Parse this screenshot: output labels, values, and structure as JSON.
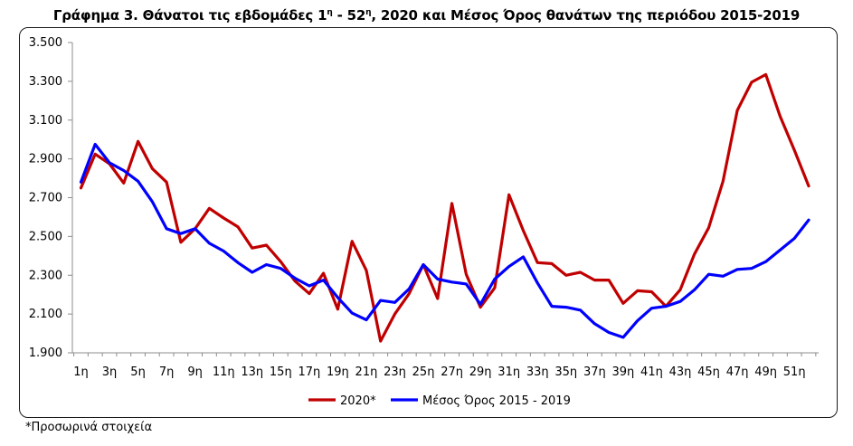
{
  "title": {
    "pre": "Γράφημα 3. Θάνατοι τις εβδομάδες 1",
    "sup1": "η",
    "mid": " - 52",
    "sup2": "η",
    "post": ", 2020 και Μέσος Όρος θανάτων της περιόδου 2015-2019"
  },
  "footnote": "*Προσωρινά στοιχεία",
  "chart_data": {
    "type": "line",
    "title": "Γράφημα 3. Θάνατοι τις εβδομάδες 1η - 52η, 2020 και Μέσος Όρος θανάτων της περιόδου 2015-2019",
    "xlabel": "",
    "ylabel": "",
    "ylim": [
      1900,
      3500
    ],
    "yticks": [
      1900,
      2100,
      2300,
      2500,
      2700,
      2900,
      3100,
      3300,
      3500
    ],
    "ytick_labels": [
      "1.900",
      "2.100",
      "2.300",
      "2.500",
      "2.700",
      "2.900",
      "3.100",
      "3.300",
      "3.500"
    ],
    "xtick_labels": [
      "1η",
      "3η",
      "5η",
      "7η",
      "9η",
      "11η",
      "13η",
      "15η",
      "17η",
      "19η",
      "21η",
      "23η",
      "25η",
      "27η",
      "29η",
      "31η",
      "33η",
      "35η",
      "37η",
      "39η",
      "41η",
      "43η",
      "45η",
      "47η",
      "49η",
      "51η"
    ],
    "grid": false,
    "legend_position": "bottom",
    "x": [
      1,
      2,
      3,
      4,
      5,
      6,
      7,
      8,
      9,
      10,
      11,
      12,
      13,
      14,
      15,
      16,
      17,
      18,
      19,
      20,
      21,
      22,
      23,
      24,
      25,
      26,
      27,
      28,
      29,
      30,
      31,
      32,
      33,
      34,
      35,
      36,
      37,
      38,
      39,
      40,
      41,
      42,
      43,
      44,
      45,
      46,
      47,
      48,
      49,
      50,
      51,
      52
    ],
    "series": [
      {
        "name": "2020*",
        "color": "#c00000",
        "values": [
          2750,
          2925,
          2875,
          2775,
          2990,
          2850,
          2780,
          2470,
          2540,
          2645,
          2595,
          2550,
          2440,
          2455,
          2370,
          2270,
          2205,
          2310,
          2125,
          2475,
          2325,
          1960,
          2100,
          2205,
          2355,
          2180,
          2670,
          2305,
          2135,
          2235,
          2715,
          2530,
          2365,
          2360,
          2300,
          2315,
          2275,
          2275,
          2155,
          2220,
          2215,
          2140,
          2225,
          2410,
          2545,
          2785,
          3150,
          3295,
          3335,
          3120,
          2945,
          2760
        ]
      },
      {
        "name": "Μέσος Όρος 2015 - 2019",
        "color": "#0000ff",
        "values": [
          2780,
          2975,
          2880,
          2840,
          2785,
          2680,
          2540,
          2515,
          2540,
          2465,
          2425,
          2365,
          2315,
          2355,
          2335,
          2285,
          2245,
          2275,
          2185,
          2105,
          2070,
          2170,
          2160,
          2230,
          2355,
          2280,
          2265,
          2255,
          2150,
          2280,
          2345,
          2395,
          2260,
          2140,
          2135,
          2120,
          2050,
          2005,
          1980,
          2065,
          2130,
          2140,
          2165,
          2225,
          2305,
          2295,
          2330,
          2335,
          2370,
          2430,
          2490,
          2585
        ]
      }
    ]
  }
}
